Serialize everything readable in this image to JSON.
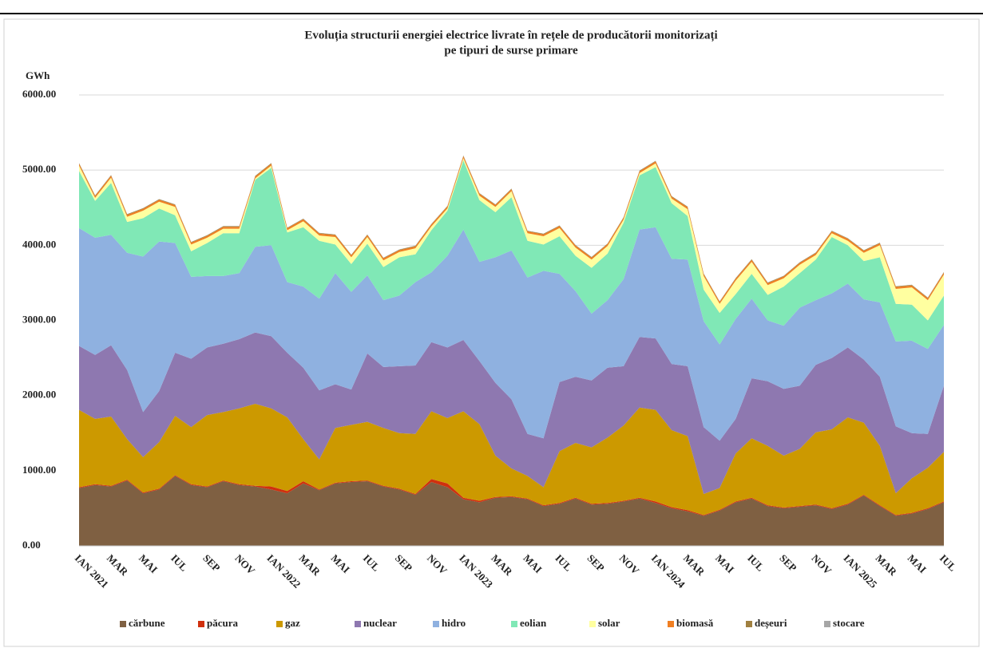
{
  "chart_data": {
    "type": "stacked-area",
    "title": [
      "Evoluția structurii energiei electrice livrate în rețele de producătorii monitorizați",
      "pe tipuri de surse primare"
    ],
    "y_label": "GWh",
    "categories": [
      "IAN 2021",
      null,
      "MAR",
      null,
      "MAI",
      null,
      "IUL",
      null,
      "SEP",
      null,
      "NOV",
      null,
      "IAN 2022",
      null,
      "MAR",
      null,
      "MAI",
      null,
      "IUL",
      null,
      "SEP",
      null,
      "NOV",
      null,
      "IAN 2023",
      null,
      "MAR",
      null,
      "MAI",
      null,
      "IUL",
      null,
      "SEP",
      null,
      "NOV",
      null,
      "IAN 2024",
      null,
      "MAR",
      null,
      "MAI",
      null,
      "IUL",
      null,
      "SEP",
      null,
      "NOV",
      null,
      "IAN 2025",
      null,
      "MAR",
      null,
      "MAI",
      null,
      "IUL"
    ],
    "ylim": [
      0,
      6000
    ],
    "yticks": [
      {
        "value": 0,
        "label": "0.00"
      },
      {
        "value": 1000,
        "label": "1000.00"
      },
      {
        "value": 2000,
        "label": "2000.00"
      },
      {
        "value": 3000,
        "label": "3000.00"
      },
      {
        "value": 4000,
        "label": "4000.00"
      },
      {
        "value": 5000,
        "label": "5000.00"
      },
      {
        "value": 6000,
        "label": "6000.00"
      }
    ],
    "grid": true,
    "legend": "bottom",
    "series": [
      {
        "name": "cărbune",
        "color": "#7f6042",
        "values": [
          770,
          810,
          790,
          870,
          700,
          750,
          930,
          810,
          780,
          860,
          810,
          790,
          750,
          700,
          830,
          740,
          830,
          850,
          860,
          790,
          750,
          680,
          850,
          780,
          620,
          580,
          640,
          650,
          620,
          530,
          560,
          630,
          550,
          560,
          590,
          630,
          570,
          500,
          460,
          400,
          470,
          580,
          630,
          530,
          500,
          520,
          540,
          490,
          550,
          670,
          530,
          400,
          430,
          490,
          580
        ]
      },
      {
        "name": "păcura",
        "color": "#d0300e",
        "values": [
          10,
          10,
          10,
          10,
          10,
          10,
          10,
          10,
          10,
          10,
          10,
          10,
          40,
          30,
          30,
          10,
          10,
          10,
          10,
          10,
          10,
          10,
          40,
          50,
          20,
          20,
          10,
          10,
          10,
          10,
          10,
          10,
          10,
          10,
          10,
          10,
          20,
          15,
          15,
          10,
          10,
          10,
          10,
          10,
          10,
          10,
          10,
          10,
          10,
          10,
          10,
          10,
          10,
          10,
          10
        ]
      },
      {
        "name": "gaz",
        "color": "#cc9900",
        "values": [
          1030,
          870,
          920,
          540,
          470,
          620,
          790,
          760,
          950,
          910,
          1010,
          1090,
          1040,
          980,
          560,
          400,
          730,
          750,
          780,
          770,
          740,
          800,
          900,
          870,
          1150,
          1020,
          550,
          370,
          300,
          240,
          690,
          730,
          750,
          870,
          1000,
          1200,
          1220,
          1025,
          985,
          280,
          290,
          640,
          790,
          790,
          690,
          760,
          960,
          1050,
          1150,
          960,
          790,
          290,
          460,
          540,
          660
        ]
      },
      {
        "name": "nuclear",
        "color": "#8e78b0",
        "values": [
          850,
          850,
          950,
          920,
          600,
          680,
          840,
          910,
          900,
          910,
          920,
          950,
          960,
          860,
          950,
          920,
          580,
          470,
          910,
          810,
          890,
          910,
          920,
          940,
          950,
          840,
          970,
          920,
          560,
          650,
          920,
          880,
          890,
          930,
          790,
          940,
          950,
          880,
          930,
          890,
          630,
          460,
          800,
          860,
          890,
          840,
          900,
          950,
          930,
          840,
          920,
          890,
          600,
          450,
          880
        ]
      },
      {
        "name": "hidro",
        "color": "#8fb1e0",
        "values": [
          1570,
          1560,
          1470,
          1560,
          2070,
          1990,
          1460,
          1090,
          950,
          900,
          880,
          1140,
          1210,
          940,
          1080,
          1220,
          1480,
          1300,
          1040,
          890,
          940,
          1110,
          930,
          1220,
          1470,
          1320,
          1670,
          1980,
          2080,
          2230,
          1440,
          1140,
          890,
          900,
          1160,
          1430,
          1480,
          1400,
          1420,
          1410,
          1280,
          1330,
          1060,
          810,
          840,
          1040,
          860,
          860,
          850,
          800,
          990,
          1130,
          1230,
          1130,
          810
        ]
      },
      {
        "name": "eolian",
        "color": "#80e8b6",
        "values": [
          760,
          490,
          690,
          410,
          510,
          440,
          370,
          340,
          440,
          570,
          530,
          890,
          1030,
          660,
          790,
          770,
          380,
          370,
          420,
          440,
          510,
          370,
          560,
          600,
          920,
          820,
          600,
          710,
          490,
          350,
          500,
          470,
          610,
          620,
          750,
          720,
          800,
          740,
          580,
          420,
          420,
          330,
          330,
          340,
          520,
          460,
          540,
          750,
          510,
          510,
          600,
          500,
          480,
          380,
          390
        ]
      },
      {
        "name": "solar",
        "color": "#ffffa0",
        "values": [
          70,
          40,
          70,
          70,
          100,
          90,
          110,
          90,
          70,
          60,
          60,
          20,
          30,
          30,
          80,
          70,
          100,
          90,
          90,
          90,
          70,
          80,
          50,
          30,
          30,
          60,
          70,
          80,
          100,
          110,
          110,
          110,
          110,
          100,
          40,
          30,
          50,
          60,
          90,
          180,
          120,
          180,
          160,
          130,
          110,
          110,
          60,
          50,
          60,
          110,
          160,
          200,
          230,
          270,
          280
        ]
      },
      {
        "name": "biomasă",
        "color": "#f07f22",
        "values": [
          25,
          25,
          25,
          25,
          25,
          25,
          25,
          25,
          25,
          25,
          25,
          25,
          25,
          25,
          25,
          25,
          25,
          25,
          25,
          25,
          25,
          25,
          25,
          25,
          25,
          25,
          25,
          25,
          25,
          25,
          25,
          25,
          25,
          25,
          25,
          25,
          25,
          25,
          25,
          25,
          25,
          25,
          25,
          25,
          25,
          25,
          25,
          25,
          25,
          25,
          25,
          25,
          25,
          25,
          25
        ]
      },
      {
        "name": "deșeuri",
        "color": "#a08040",
        "values": [
          8,
          8,
          8,
          8,
          8,
          8,
          8,
          8,
          8,
          8,
          8,
          8,
          8,
          8,
          8,
          8,
          8,
          8,
          8,
          8,
          8,
          8,
          8,
          8,
          8,
          8,
          8,
          8,
          8,
          8,
          8,
          8,
          8,
          8,
          8,
          8,
          8,
          8,
          8,
          8,
          8,
          8,
          8,
          8,
          8,
          8,
          8,
          8,
          8,
          8,
          8,
          8,
          8,
          8,
          8
        ]
      },
      {
        "name": "stocare",
        "color": "#a6a6a6",
        "values": [
          2,
          2,
          2,
          2,
          2,
          2,
          2,
          2,
          2,
          2,
          2,
          2,
          2,
          2,
          2,
          2,
          2,
          2,
          2,
          2,
          2,
          2,
          2,
          2,
          2,
          2,
          2,
          2,
          2,
          2,
          2,
          2,
          2,
          2,
          2,
          2,
          2,
          2,
          2,
          2,
          2,
          2,
          2,
          2,
          2,
          2,
          2,
          2,
          2,
          2,
          2,
          2,
          2,
          2,
          2
        ]
      }
    ]
  }
}
